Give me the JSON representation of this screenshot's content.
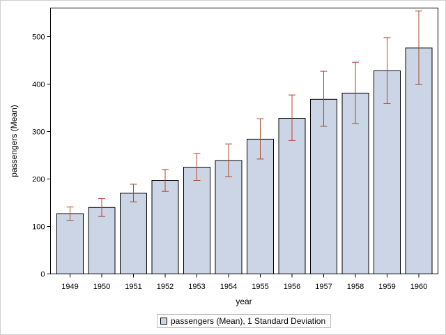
{
  "chart_data": {
    "type": "bar",
    "title": "",
    "xlabel": "year",
    "ylabel": "passengers (Mean)",
    "categories": [
      "1949",
      "1950",
      "1951",
      "1952",
      "1953",
      "1954",
      "1955",
      "1956",
      "1957",
      "1958",
      "1959",
      "1960"
    ],
    "series": [
      {
        "name": "passengers (Mean), 1 Standard Deviation",
        "values": [
          127,
          140,
          170,
          197,
          225,
          239,
          284,
          328,
          368,
          381,
          428,
          476
        ],
        "error_low": [
          113,
          121,
          152,
          174,
          197,
          205,
          242,
          281,
          311,
          317,
          359,
          399
        ],
        "error_high": [
          141,
          159,
          189,
          220,
          254,
          274,
          327,
          377,
          427,
          446,
          498,
          554
        ]
      }
    ],
    "ylim": [
      0,
      560
    ],
    "yticks": [
      0,
      100,
      200,
      300,
      400,
      500
    ],
    "grid": false,
    "legend_position": "bottom-center",
    "colors": {
      "bar_fill": "#cbd5e5",
      "bar_stroke": "#000000",
      "error_bar": "#b0452a",
      "axis": "#000000"
    }
  }
}
